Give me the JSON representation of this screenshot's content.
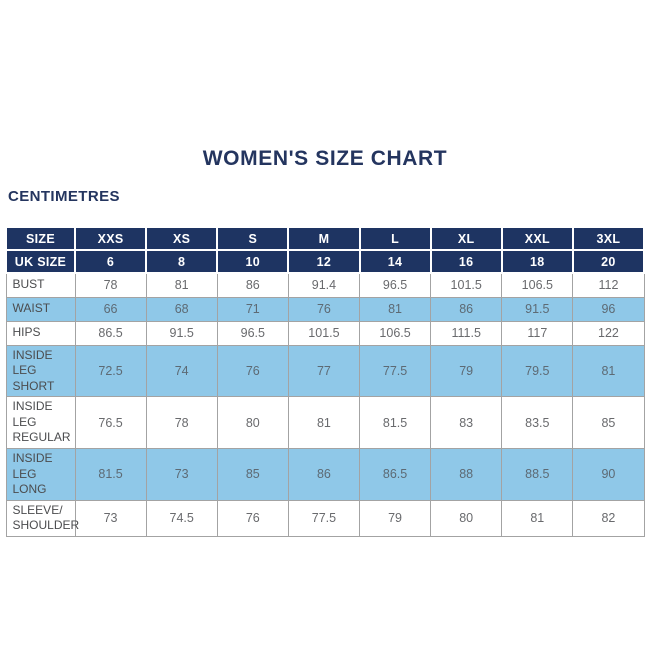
{
  "page": {
    "title": "WOMEN'S SIZE CHART",
    "unit_label": "CENTIMETRES"
  },
  "colors": {
    "header_navy": "#1e3462",
    "stripe_blue": "#8fc8e8",
    "title_navy": "#24355f",
    "border_gray": "#a3a3a3",
    "value_text": "#696a6d",
    "background": "#ffffff"
  },
  "size_table": {
    "header_rows": [
      {
        "label": "SIZE",
        "values": [
          "XXS",
          "XS",
          "S",
          "M",
          "L",
          "XL",
          "XXL",
          "3XL"
        ]
      },
      {
        "label": "UK SIZE",
        "values": [
          "6",
          "8",
          "10",
          "12",
          "14",
          "16",
          "18",
          "20"
        ]
      }
    ],
    "rows": [
      {
        "label": "BUST",
        "values": [
          "78",
          "81",
          "86",
          "91.4",
          "96.5",
          "101.5",
          "106.5",
          "112"
        ]
      },
      {
        "label": "WAIST",
        "values": [
          "66",
          "68",
          "71",
          "76",
          "81",
          "86",
          "91.5",
          "96"
        ]
      },
      {
        "label": "HIPS",
        "values": [
          "86.5",
          "91.5",
          "96.5",
          "101.5",
          "106.5",
          "111.5",
          "117",
          "122"
        ]
      },
      {
        "label": "INSIDE LEG\nSHORT",
        "values": [
          "72.5",
          "74",
          "76",
          "77",
          "77.5",
          "79",
          "79.5",
          "81"
        ]
      },
      {
        "label": "INSIDE LEG\nREGULAR",
        "values": [
          "76.5",
          "78",
          "80",
          "81",
          "81.5",
          "83",
          "83.5",
          "85"
        ]
      },
      {
        "label": "INSIDE LEG\nLONG",
        "values": [
          "81.5",
          "73",
          "85",
          "86",
          "86.5",
          "88",
          "88.5",
          "90"
        ]
      },
      {
        "label": "SLEEVE/\nSHOULDER",
        "values": [
          "73",
          "74.5",
          "76",
          "77.5",
          "79",
          "80",
          "81",
          "82"
        ]
      }
    ]
  }
}
